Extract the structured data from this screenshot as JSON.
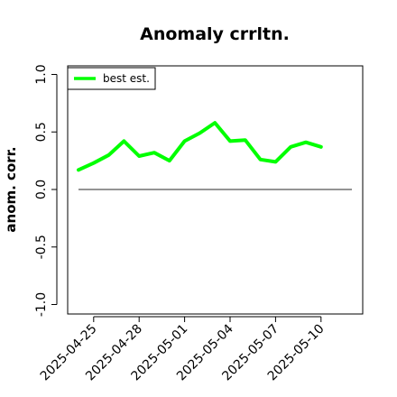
{
  "chart_data": {
    "type": "line",
    "title": "Anomaly crrltn.",
    "ylabel": "anom. corr.",
    "xlabel": "",
    "ylim": [
      -1.0,
      1.0
    ],
    "x_tick_labels": [
      "2025-04-25",
      "2025-04-28",
      "2025-05-01",
      "2025-05-04",
      "2025-05-07",
      "2025-05-10"
    ],
    "y_tick_labels": [
      "-1.0",
      "-0.5",
      "0.0",
      "0.5",
      "1.0"
    ],
    "legend": {
      "position": "top-left",
      "entries": [
        "best est."
      ]
    },
    "grid": false,
    "series": [
      {
        "name": "best est.",
        "color": "#00ff00",
        "x": [
          "2025-04-24",
          "2025-04-25",
          "2025-04-26",
          "2025-04-27",
          "2025-04-28",
          "2025-04-29",
          "2025-04-30",
          "2025-05-01",
          "2025-05-02",
          "2025-05-03",
          "2025-05-04",
          "2025-05-05",
          "2025-05-06",
          "2025-05-07",
          "2025-05-08",
          "2025-05-09",
          "2025-05-10"
        ],
        "values": [
          0.17,
          0.23,
          0.3,
          0.42,
          0.29,
          0.32,
          0.25,
          0.42,
          0.49,
          0.58,
          0.42,
          0.43,
          0.26,
          0.24,
          0.37,
          0.41,
          0.37
        ]
      }
    ],
    "reference_line": {
      "y": 0.0,
      "color": "#555555"
    }
  }
}
